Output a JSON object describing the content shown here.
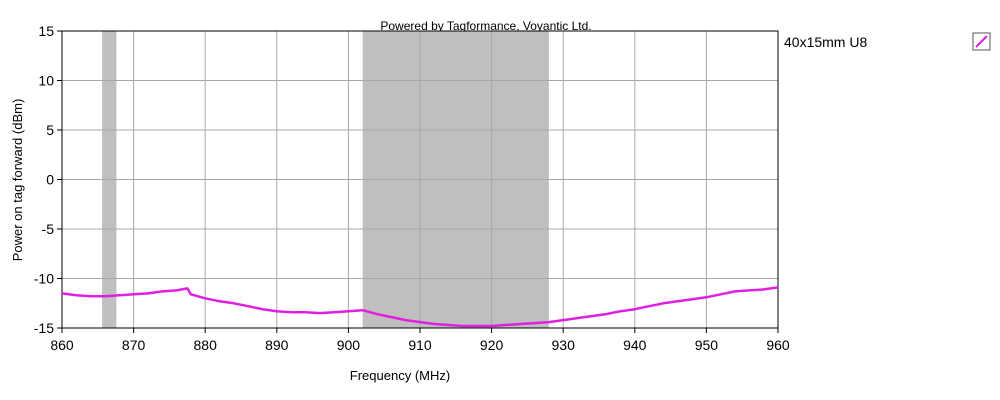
{
  "chart_data": {
    "type": "line",
    "title": "Powered by Tagformance, Voyantic Ltd.",
    "xlabel": "Frequency (MHz)",
    "ylabel": "Power on tag forward (dBm)",
    "xlim": [
      860,
      960
    ],
    "ylim": [
      -15,
      15
    ],
    "x_ticks": [
      860,
      870,
      880,
      890,
      900,
      910,
      920,
      930,
      940,
      950,
      960
    ],
    "y_ticks": [
      15,
      10,
      5,
      0,
      -5,
      -10,
      -15
    ],
    "grid": true,
    "legend_position": "right",
    "shaded_bands": [
      {
        "from": 865.6,
        "to": 867.6
      },
      {
        "from": 902,
        "to": 928
      }
    ],
    "series": [
      {
        "name": "40x15mm U8",
        "color": "#e020e0",
        "x": [
          860,
          862,
          864,
          866,
          868,
          870,
          872,
          874,
          876,
          877.5,
          878,
          880,
          882,
          884,
          886,
          888,
          890,
          892,
          894,
          896,
          898,
          900,
          902,
          904,
          906,
          908,
          910,
          912,
          914,
          916,
          918,
          920,
          922,
          924,
          926,
          928,
          930,
          932,
          934,
          936,
          938,
          940,
          942,
          944,
          946,
          948,
          950,
          952,
          954,
          956,
          958,
          959,
          960
        ],
        "y": [
          -11.5,
          -11.7,
          -11.8,
          -11.8,
          -11.7,
          -11.6,
          -11.5,
          -11.3,
          -11.2,
          -11.0,
          -11.6,
          -12.0,
          -12.3,
          -12.5,
          -12.8,
          -13.1,
          -13.3,
          -13.4,
          -13.4,
          -13.5,
          -13.4,
          -13.3,
          -13.2,
          -13.6,
          -13.9,
          -14.2,
          -14.4,
          -14.6,
          -14.7,
          -14.8,
          -14.8,
          -14.8,
          -14.7,
          -14.6,
          -14.5,
          -14.4,
          -14.2,
          -14.0,
          -13.8,
          -13.6,
          -13.3,
          -13.1,
          -12.8,
          -12.5,
          -12.3,
          -12.1,
          -11.9,
          -11.6,
          -11.3,
          -11.2,
          -11.1,
          -11.0,
          -10.9
        ]
      }
    ]
  }
}
